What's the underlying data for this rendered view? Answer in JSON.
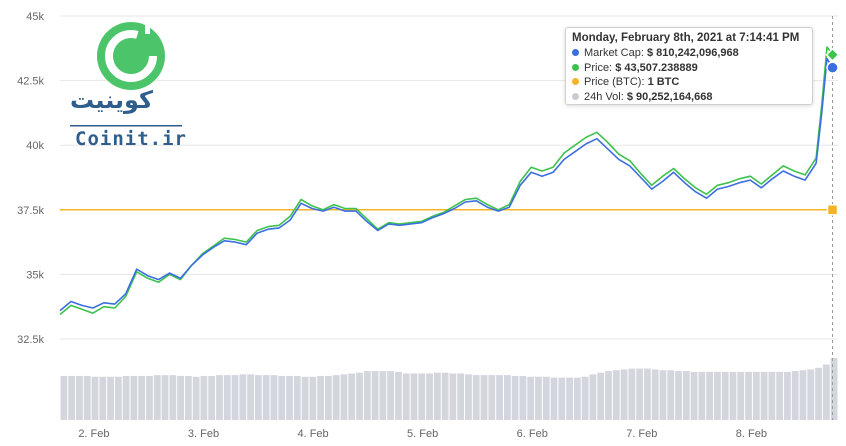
{
  "logo": {
    "brand_latin": "Coinit.ir",
    "brand_persian": "کوینیت",
    "icon": "coin-logo-icon",
    "color_green": "#4cc46a",
    "color_blue": "#2f5e8c"
  },
  "tooltip": {
    "title": "Monday, February 8th, 2021 at 7:14:41 PM",
    "rows": [
      {
        "label": "Market Cap:",
        "value": "$ 810,242,096,968",
        "color": "#3b6fe0"
      },
      {
        "label": "Price:",
        "value": "$ 43,507.238889",
        "color": "#3ec24e"
      },
      {
        "label": "Price (BTC):",
        "value": "1 BTC",
        "color": "#f5b32a"
      },
      {
        "label": "24h Vol:",
        "value": "$ 90,252,164,668",
        "color": "#c9cbd4"
      }
    ]
  },
  "chart_data": {
    "type": "line",
    "y_axis": {
      "min": 31500,
      "max": 45000,
      "ticks": [
        32500,
        35000,
        37500,
        40000,
        42500,
        45000
      ],
      "tick_labels": [
        "32.5k",
        "35k",
        "37.5k",
        "40k",
        "42.5k",
        "45k"
      ]
    },
    "x_axis": {
      "min": 1.8,
      "max": 8.9,
      "ticks": [
        2,
        3,
        4,
        5,
        6,
        7,
        8
      ],
      "tick_labels": [
        "2. Feb",
        "3. Feb",
        "4. Feb",
        "5. Feb",
        "6. Feb",
        "7. Feb",
        "8. Feb"
      ]
    },
    "grid": true,
    "reference_line": {
      "name": "Price (BTC)",
      "y": 37500,
      "color": "#f5b32a"
    },
    "series": [
      {
        "name": "Price",
        "color": "#3ec24e",
        "x": [
          1.8,
          1.9,
          2.0,
          2.1,
          2.2,
          2.3,
          2.4,
          2.5,
          2.6,
          2.7,
          2.8,
          2.9,
          3.0,
          3.1,
          3.2,
          3.3,
          3.4,
          3.5,
          3.6,
          3.7,
          3.8,
          3.9,
          4.0,
          4.1,
          4.2,
          4.3,
          4.4,
          4.5,
          4.6,
          4.7,
          4.8,
          4.9,
          5.0,
          5.1,
          5.2,
          5.3,
          5.4,
          5.5,
          5.6,
          5.7,
          5.8,
          5.9,
          6.0,
          6.1,
          6.2,
          6.3,
          6.4,
          6.5,
          6.6,
          6.7,
          6.8,
          6.9,
          7.0,
          7.1,
          7.2,
          7.3,
          7.4,
          7.5,
          7.6,
          7.7,
          7.8,
          7.9,
          8.0,
          8.1,
          8.2,
          8.3,
          8.4,
          8.5,
          8.6,
          8.7,
          8.75,
          8.8,
          8.85
        ],
        "values": [
          33450,
          33800,
          33650,
          33500,
          33750,
          33700,
          34150,
          35100,
          34850,
          34700,
          35000,
          34800,
          35350,
          35800,
          36100,
          36400,
          36350,
          36250,
          36700,
          36850,
          36900,
          37250,
          37900,
          37650,
          37500,
          37700,
          37550,
          37550,
          37150,
          36750,
          37000,
          36950,
          37000,
          37050,
          37250,
          37400,
          37650,
          37900,
          37950,
          37700,
          37500,
          37700,
          38600,
          39150,
          39000,
          39150,
          39700,
          40000,
          40300,
          40500,
          40100,
          39650,
          39400,
          38900,
          38450,
          38800,
          39100,
          38700,
          38350,
          38100,
          38450,
          38550,
          38700,
          38800,
          38500,
          38850,
          39200,
          39000,
          38850,
          39500,
          41500,
          43800,
          43500
        ]
      },
      {
        "name": "Market Cap",
        "color": "#3b6fe0",
        "x": [
          1.8,
          1.9,
          2.0,
          2.1,
          2.2,
          2.3,
          2.4,
          2.5,
          2.6,
          2.7,
          2.8,
          2.9,
          3.0,
          3.1,
          3.2,
          3.3,
          3.4,
          3.5,
          3.6,
          3.7,
          3.8,
          3.9,
          4.0,
          4.1,
          4.2,
          4.3,
          4.4,
          4.5,
          4.6,
          4.7,
          4.8,
          4.9,
          5.0,
          5.1,
          5.2,
          5.3,
          5.4,
          5.5,
          5.6,
          5.7,
          5.8,
          5.9,
          6.0,
          6.1,
          6.2,
          6.3,
          6.4,
          6.5,
          6.6,
          6.7,
          6.8,
          6.9,
          7.0,
          7.1,
          7.2,
          7.3,
          7.4,
          7.5,
          7.6,
          7.7,
          7.8,
          7.9,
          8.0,
          8.1,
          8.2,
          8.3,
          8.4,
          8.5,
          8.6,
          8.7,
          8.75,
          8.8,
          8.85
        ],
        "values": [
          33600,
          33950,
          33800,
          33700,
          33900,
          33850,
          34250,
          35200,
          34950,
          34800,
          35050,
          34850,
          35350,
          35750,
          36050,
          36300,
          36250,
          36150,
          36600,
          36750,
          36800,
          37100,
          37750,
          37550,
          37450,
          37600,
          37450,
          37450,
          37050,
          36700,
          36950,
          36900,
          36950,
          37000,
          37200,
          37350,
          37550,
          37800,
          37850,
          37600,
          37450,
          37600,
          38450,
          38950,
          38800,
          38950,
          39450,
          39750,
          40050,
          40250,
          39850,
          39450,
          39200,
          38750,
          38300,
          38600,
          38950,
          38550,
          38200,
          37950,
          38300,
          38400,
          38550,
          38650,
          38350,
          38700,
          39000,
          38800,
          38650,
          39300,
          41200,
          43350,
          43000
        ]
      }
    ],
    "volume": {
      "name": "24h Vol",
      "color": "#d4d6de",
      "values": [
        0.54,
        0.54,
        0.54,
        0.54,
        0.53,
        0.53,
        0.53,
        0.53,
        0.54,
        0.54,
        0.54,
        0.54,
        0.55,
        0.55,
        0.55,
        0.54,
        0.54,
        0.53,
        0.54,
        0.54,
        0.55,
        0.55,
        0.55,
        0.56,
        0.56,
        0.55,
        0.55,
        0.55,
        0.54,
        0.54,
        0.54,
        0.53,
        0.53,
        0.54,
        0.54,
        0.55,
        0.56,
        0.57,
        0.58,
        0.6,
        0.6,
        0.6,
        0.6,
        0.59,
        0.57,
        0.57,
        0.57,
        0.57,
        0.58,
        0.58,
        0.57,
        0.57,
        0.56,
        0.55,
        0.55,
        0.55,
        0.55,
        0.55,
        0.54,
        0.54,
        0.53,
        0.53,
        0.53,
        0.52,
        0.52,
        0.52,
        0.52,
        0.53,
        0.56,
        0.58,
        0.6,
        0.61,
        0.62,
        0.63,
        0.63,
        0.63,
        0.62,
        0.61,
        0.61,
        0.6,
        0.6,
        0.59,
        0.59,
        0.59,
        0.59,
        0.59,
        0.59,
        0.59,
        0.59,
        0.59,
        0.59,
        0.59,
        0.59,
        0.59,
        0.6,
        0.61,
        0.62,
        0.64,
        0.68,
        0.76
      ],
      "max_ratio": 1.0
    },
    "hover_points": [
      {
        "series": "Price",
        "x": 8.85,
        "y": 43500,
        "color": "#3ec24e"
      },
      {
        "series": "Market Cap",
        "x": 8.85,
        "y": 43000,
        "color": "#3b6fe0"
      },
      {
        "series": "Price (BTC)",
        "x": 8.85,
        "y": 37500,
        "color": "#f5b32a"
      }
    ]
  }
}
